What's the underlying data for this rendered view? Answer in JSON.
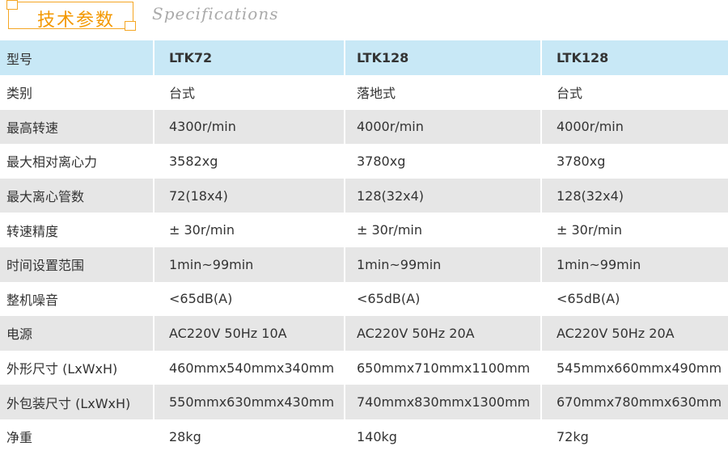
{
  "title": "技术参数",
  "subtitle": "Specifications",
  "colors": {
    "accent": "#f39800",
    "header_bg": "#c8e8f6",
    "stripe_bg": "#e6e6e6"
  },
  "table": {
    "header": [
      "型号",
      "LTK72",
      "LTK128",
      "LTK128"
    ],
    "rows": [
      [
        "类别",
        "台式",
        "落地式",
        "台式"
      ],
      [
        "最高转速",
        "4300r/min",
        "4000r/min",
        "4000r/min"
      ],
      [
        "最大相对离心力",
        "3582xg",
        "3780xg",
        "3780xg"
      ],
      [
        "最大离心管数",
        "72(18x4)",
        "128(32x4)",
        "128(32x4)"
      ],
      [
        "转速精度",
        "± 30r/min",
        "± 30r/min",
        "± 30r/min"
      ],
      [
        "时间设置范围",
        "1min~99min",
        "1min~99min",
        "1min~99min"
      ],
      [
        "整机噪音",
        "<65dB(A)",
        "<65dB(A)",
        "<65dB(A)"
      ],
      [
        "电源",
        "AC220V  50Hz  10A",
        "AC220V  50Hz  20A",
        "AC220V  50Hz  20A"
      ],
      [
        "外形尺寸 (LxWxH)",
        "460mmx540mmx340mm",
        "650mmx710mmx1100mm",
        "545mmx660mmx490mm"
      ],
      [
        "外包装尺寸 (LxWxH)",
        "550mmx630mmx430mm",
        "740mmx830mmx1300mm",
        "670mmx780mmx630mm"
      ],
      [
        "净重",
        "28kg",
        "140kg",
        "72kg"
      ]
    ]
  }
}
